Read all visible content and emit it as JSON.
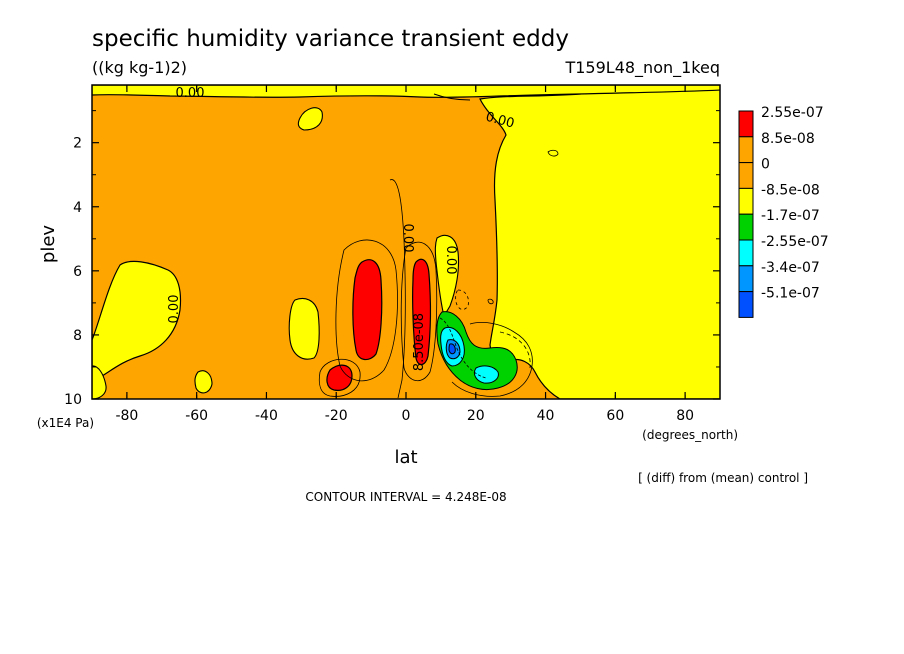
{
  "header": {
    "title": "specific humidity variance transient eddy",
    "units": "((kg kg-1)2)",
    "experiment": "T159L48_non_1keq",
    "note": "[ (diff) from (mean) control ]",
    "contour_interval": "CONTOUR INTERVAL = 4.248E-08"
  },
  "chart_data": {
    "type": "heatmap",
    "xlabel": "lat",
    "xunits": "(degrees_north)",
    "ylabel": "plev",
    "yunits": "(x1E4 Pa)",
    "xlim": [
      -90,
      90
    ],
    "ylim": [
      10,
      0.2
    ],
    "y_inverted": true,
    "xticks": [
      -80,
      -60,
      -40,
      -20,
      0,
      20,
      40,
      60,
      80
    ],
    "yticks": [
      2,
      4,
      6,
      8,
      10
    ],
    "contour_labels": [
      "0.00",
      "0.00",
      "0.00",
      "0.00",
      "0.00",
      "8.50e-08"
    ],
    "legend": {
      "placement": "right",
      "entries": [
        {
          "label": "2.55e-07",
          "color": "#ff0000"
        },
        {
          "label": "8.5e-08",
          "color": "#ffa500"
        },
        {
          "label": "0",
          "color": "#ffa500"
        },
        {
          "label": "-8.5e-08",
          "color": "#ffff00"
        },
        {
          "label": "-1.7e-07",
          "color": "#00d200"
        },
        {
          "label": "-2.55e-07",
          "color": "#00ffff"
        },
        {
          "label": "-3.4e-07",
          "color": "#0096ff"
        },
        {
          "label": "-5.1e-07",
          "color": "#0050ff"
        }
      ]
    },
    "fields": {
      "background": {
        "color": "#ffa500",
        "range": "0 to 8.5e-08"
      },
      "positive_maxima": [
        {
          "lat": -11,
          "plev": 7.0,
          "color": "#ff0000"
        },
        {
          "lat": 5,
          "plev": 7.2,
          "color": "#ff0000"
        },
        {
          "lat": -18,
          "plev": 9.3,
          "color": "#ff0000"
        }
      ],
      "negative_minima": [
        {
          "lat": 13,
          "plev": 8.4,
          "color": "#0050ff"
        },
        {
          "lat": 23,
          "plev": 9.2,
          "color": "#00ffff"
        }
      ],
      "negative_region": {
        "lat_range": [
          25,
          90
        ],
        "plev_range": [
          0.2,
          10
        ],
        "color": "#ffff00"
      }
    }
  }
}
